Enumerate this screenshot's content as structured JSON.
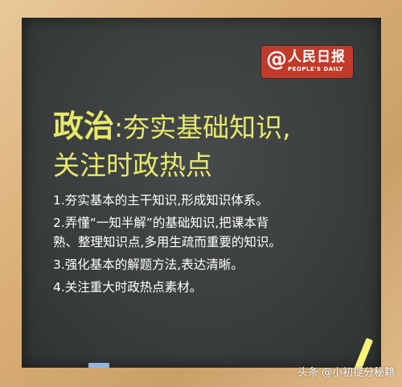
{
  "logo": {
    "at": "@",
    "name_cn": "人民日报",
    "name_en": "PEOPLE'S DAILY"
  },
  "title": {
    "subject": "政治",
    "colon": ":",
    "line1_rest": "夯实基础知识,",
    "line2": "关注时政热点"
  },
  "items": [
    {
      "text": "1.夯实基本的主干知识,形成知识体系。"
    },
    {
      "text": "2.弄懂“一知半解”的基础知识,把课本背"
    },
    {
      "text": "熟、整理知识点,多用生疏而重要的知识。"
    },
    {
      "text": "3.强化基本的解题方法,表达清晰。"
    },
    {
      "text": "4.关注重大时政热点素材。"
    }
  ],
  "watermark": "头条 @小初提分秘籍"
}
